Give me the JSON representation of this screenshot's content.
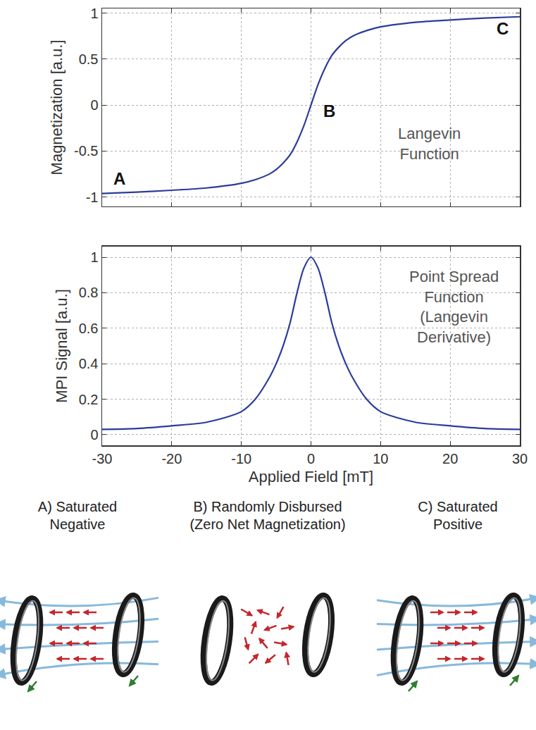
{
  "chart_data": [
    {
      "type": "line",
      "y_label": "Magnetization [a.u.]",
      "x": [
        -30,
        -25,
        -20,
        -15,
        -10,
        -8,
        -6,
        -5,
        -4,
        -3,
        -2,
        -1,
        0,
        1,
        2,
        3,
        4,
        5,
        6,
        8,
        10,
        15,
        20,
        25,
        30
      ],
      "values": [
        -0.96,
        -0.945,
        -0.925,
        -0.9,
        -0.85,
        -0.81,
        -0.75,
        -0.7,
        -0.63,
        -0.54,
        -0.4,
        -0.22,
        0,
        0.22,
        0.4,
        0.54,
        0.63,
        0.7,
        0.75,
        0.81,
        0.85,
        0.9,
        0.925,
        0.945,
        0.96
      ],
      "color": "#2c3c9c",
      "xlim": [
        -30,
        30
      ],
      "xticks": [
        -30,
        -20,
        -10,
        0,
        10,
        20,
        30
      ],
      "ylim": [
        -1.1,
        1.05
      ],
      "yticks": [
        -1,
        -0.5,
        0,
        0.5,
        1
      ],
      "grid": true,
      "tick_labels": "y",
      "annotations": [
        [
          "A"
        ],
        [
          "B"
        ],
        [
          "C"
        ],
        [
          "Langevin",
          "Function"
        ]
      ]
    },
    {
      "type": "line",
      "x_label": "Applied Field [mT]",
      "y_label": "MPI Signal [a.u.]",
      "x": [
        -30,
        -25,
        -20,
        -15,
        -10,
        -8,
        -6,
        -5,
        -4,
        -3,
        -2,
        -1,
        0,
        1,
        2,
        3,
        4,
        5,
        6,
        8,
        10,
        15,
        20,
        25,
        30
      ],
      "values": [
        0.03,
        0.035,
        0.05,
        0.07,
        0.13,
        0.2,
        0.32,
        0.4,
        0.5,
        0.63,
        0.8,
        0.94,
        1,
        0.94,
        0.8,
        0.63,
        0.5,
        0.4,
        0.32,
        0.2,
        0.13,
        0.07,
        0.05,
        0.035,
        0.03
      ],
      "color": "#2c3c9c",
      "xlim": [
        -30,
        30
      ],
      "xticks": [
        -30,
        -20,
        -10,
        0,
        10,
        20,
        30
      ],
      "ylim": [
        -0.06,
        1.06
      ],
      "yticks": [
        0,
        0.2,
        0.4,
        0.6,
        0.8,
        1
      ],
      "grid": true,
      "annotations": [
        [
          "Point Spread",
          "Function",
          "(Langevin",
          "Derivative)"
        ]
      ]
    }
  ],
  "diagram": {
    "panels": [
      {
        "title": [
          "A) Saturated",
          "Negative"
        ]
      },
      {
        "title": [
          "B) Randomly Disbursed",
          "(Zero Net Magnetization)"
        ]
      },
      {
        "title": [
          "C) Saturated",
          "Positive"
        ]
      }
    ]
  }
}
